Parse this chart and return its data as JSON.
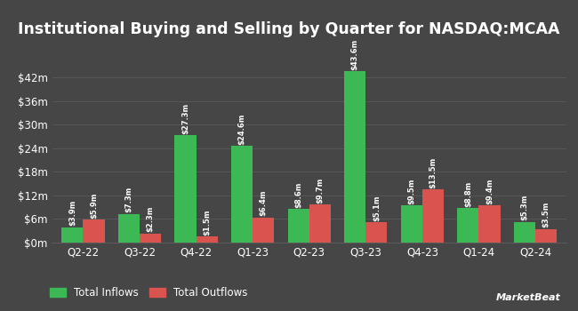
{
  "title": "Institutional Buying and Selling by Quarter for NASDAQ:MCAA",
  "quarters": [
    "Q2-22",
    "Q3-22",
    "Q4-22",
    "Q1-23",
    "Q2-23",
    "Q3-23",
    "Q4-23",
    "Q1-24",
    "Q2-24"
  ],
  "inflows": [
    3.9,
    7.3,
    27.3,
    24.6,
    8.6,
    43.6,
    9.5,
    8.8,
    5.3
  ],
  "outflows": [
    5.9,
    2.3,
    1.5,
    6.4,
    9.7,
    5.1,
    13.5,
    9.4,
    3.5
  ],
  "inflow_labels": [
    "$3.9m",
    "$7.3m",
    "$27.3m",
    "$24.6m",
    "$8.6m",
    "$43.6m",
    "$9.5m",
    "$8.8m",
    "$5.3m"
  ],
  "outflow_labels": [
    "$5.9m",
    "$2.3m",
    "$1.5m",
    "$6.4m",
    "$9.7m",
    "$5.1m",
    "$13.5m",
    "$9.4m",
    "$3.5m"
  ],
  "inflow_color": "#3cb954",
  "outflow_color": "#d9534f",
  "background_color": "#464646",
  "text_color": "#ffffff",
  "grid_color": "#5a5a5a",
  "yticks": [
    0,
    6,
    12,
    18,
    24,
    30,
    36,
    42
  ],
  "ytick_labels": [
    "$0m",
    "$6m",
    "$12m",
    "$18m",
    "$24m",
    "$30m",
    "$36m",
    "$42m"
  ],
  "ylim": [
    0,
    49
  ],
  "legend_inflow": "Total Inflows",
  "legend_outflow": "Total Outflows",
  "bar_width": 0.38,
  "title_fontsize": 12.5,
  "label_fontsize": 6.0,
  "tick_fontsize": 8.5,
  "legend_fontsize": 8.5
}
